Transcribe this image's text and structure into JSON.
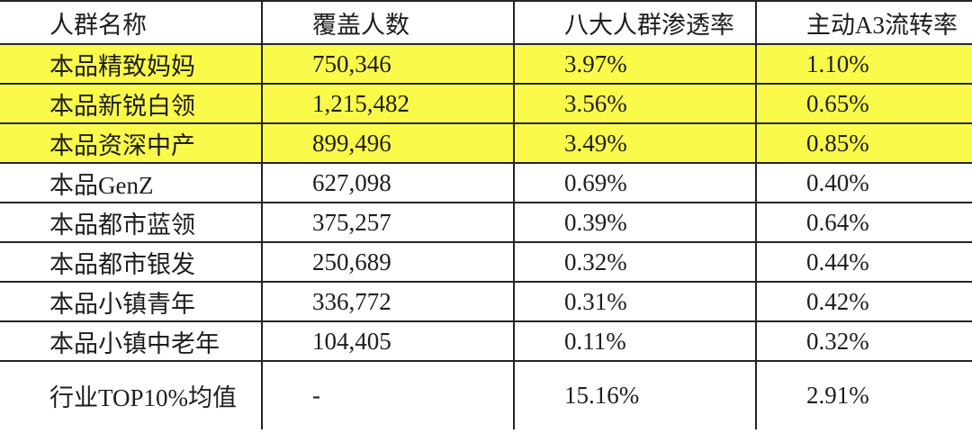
{
  "table": {
    "highlight_color": "#fafa4b",
    "columns": [
      {
        "label": "人群名称"
      },
      {
        "label": "覆盖人数"
      },
      {
        "label": "八大人群渗透率"
      },
      {
        "label": "主动A3流转率"
      }
    ],
    "rows": [
      {
        "name": "本品精致妈妈",
        "coverage": "750,346",
        "penetration": "3.97%",
        "a3_rate": "1.10%",
        "highlighted": true
      },
      {
        "name": "本品新锐白领",
        "coverage": "1,215,482",
        "penetration": "3.56%",
        "a3_rate": "0.65%",
        "highlighted": true
      },
      {
        "name": "本品资深中产",
        "coverage": "899,496",
        "penetration": "3.49%",
        "a3_rate": "0.85%",
        "highlighted": true
      },
      {
        "name": "本品GenZ",
        "coverage": "627,098",
        "penetration": "0.69%",
        "a3_rate": "0.40%",
        "highlighted": false
      },
      {
        "name": "本品都市蓝领",
        "coverage": "375,257",
        "penetration": "0.39%",
        "a3_rate": "0.64%",
        "highlighted": false
      },
      {
        "name": "本品都市银发",
        "coverage": "250,689",
        "penetration": "0.32%",
        "a3_rate": "0.44%",
        "highlighted": false
      },
      {
        "name": "本品小镇青年",
        "coverage": "336,772",
        "penetration": "0.31%",
        "a3_rate": "0.42%",
        "highlighted": false
      },
      {
        "name": "本品小镇中老年",
        "coverage": "104,405",
        "penetration": "0.11%",
        "a3_rate": "0.32%",
        "highlighted": false
      },
      {
        "name": "行业TOP10%均值",
        "coverage": "-",
        "penetration": "15.16%",
        "a3_rate": "2.91%",
        "highlighted": false
      }
    ]
  },
  "chart_data": {
    "type": "table",
    "title": "",
    "columns": [
      "人群名称",
      "覆盖人数",
      "八大人群渗透率",
      "主动A3流转率"
    ],
    "rows": [
      [
        "本品精致妈妈",
        "750,346",
        "3.97%",
        "1.10%"
      ],
      [
        "本品新锐白领",
        "1,215,482",
        "3.56%",
        "0.65%"
      ],
      [
        "本品资深中产",
        "899,496",
        "3.49%",
        "0.85%"
      ],
      [
        "本品GenZ",
        "627,098",
        "0.69%",
        "0.40%"
      ],
      [
        "本品都市蓝领",
        "375,257",
        "0.39%",
        "0.64%"
      ],
      [
        "本品都市银发",
        "250,689",
        "0.32%",
        "0.44%"
      ],
      [
        "本品小镇青年",
        "336,772",
        "0.31%",
        "0.42%"
      ],
      [
        "本品小镇中老年",
        "104,405",
        "0.11%",
        "0.32%"
      ],
      [
        "行业TOP10%均值",
        "-",
        "15.16%",
        "2.91%"
      ]
    ],
    "highlighted_rows": [
      0,
      1,
      2
    ],
    "layout_hints": {
      "grid": "full",
      "header_row": true,
      "highlight": "yellow rows 1-3"
    }
  }
}
